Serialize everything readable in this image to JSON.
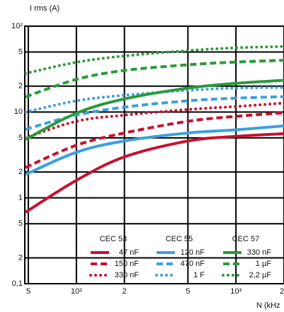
{
  "chart_data": {
    "type": "line",
    "log_x": true,
    "log_y": true,
    "grid": true,
    "y_label": "I rms (A)",
    "x_label": "N (kHz",
    "x": [
      48,
      100,
      200,
      500,
      1000,
      2000
    ],
    "xlim": [
      47.5,
      2000
    ],
    "xticks": [
      {
        "value": 50,
        "label": "5"
      },
      {
        "value": 100,
        "label": "10²"
      },
      {
        "value": 200,
        "label": "2"
      },
      {
        "value": 500,
        "label": "5"
      },
      {
        "value": 1000,
        "label": "10³"
      },
      {
        "value": 2000,
        "label": "2"
      }
    ],
    "ylim": [
      0.1,
      100
    ],
    "yticks": [
      {
        "value": 0.1,
        "label": "0,1"
      },
      {
        "value": 0.2,
        "label": "2"
      },
      {
        "value": 0.5,
        "label": "5"
      },
      1,
      {
        "value": 2,
        "label": "2"
      },
      {
        "value": 5,
        "label": "5"
      },
      10,
      {
        "value": 20,
        "label": "2"
      },
      {
        "value": 50,
        "label": "5"
      },
      {
        "value": 100,
        "label": "10²"
      }
    ],
    "legend_groups": [
      "CEC 53",
      "CEC 55",
      "CEC 57"
    ],
    "series": [
      {
        "name": "47 nF",
        "color": "#c8102e",
        "dash": "solid",
        "values": [
          0.68,
          1.6,
          3.0,
          4.6,
          5.2,
          5.6
        ]
      },
      {
        "name": "150 nF",
        "color": "#c8102e",
        "dash": "dashed",
        "values": [
          2.26,
          4.1,
          5.7,
          7.8,
          8.9,
          9.8
        ]
      },
      {
        "name": "330 nF",
        "color": "#c8102e",
        "dash": "dotted",
        "values": [
          5.0,
          7.8,
          9.2,
          10.7,
          11.6,
          12.7
        ]
      },
      {
        "name": "120 nF",
        "color": "#3aa0e0",
        "dash": "solid",
        "values": [
          1.87,
          3.4,
          4.6,
          5.7,
          6.2,
          6.9
        ]
      },
      {
        "name": "470 nF",
        "color": "#3aa0e0",
        "dash": "dashed",
        "values": [
          6.3,
          9.2,
          11.4,
          13.5,
          14.5,
          15.1
        ]
      },
      {
        "name": "1 F",
        "color": "#3aa0e0",
        "dash": "dotted",
        "values": [
          10,
          13.5,
          15.7,
          17.9,
          19,
          19.3
        ]
      },
      {
        "name": "330 nF",
        "color": "#2a9a3a",
        "dash": "solid",
        "values": [
          4.8,
          9.7,
          14.2,
          19,
          21.6,
          23.4
        ]
      },
      {
        "name": "1 µF",
        "color": "#2a9a3a",
        "dash": "dashed",
        "values": [
          15,
          24,
          30.5,
          35.5,
          38.2,
          40
        ]
      },
      {
        "name": "2,2 µF",
        "color": "#2a9a3a",
        "dash": "dotted",
        "values": [
          28.2,
          38,
          45,
          52,
          56,
          58
        ]
      }
    ]
  }
}
